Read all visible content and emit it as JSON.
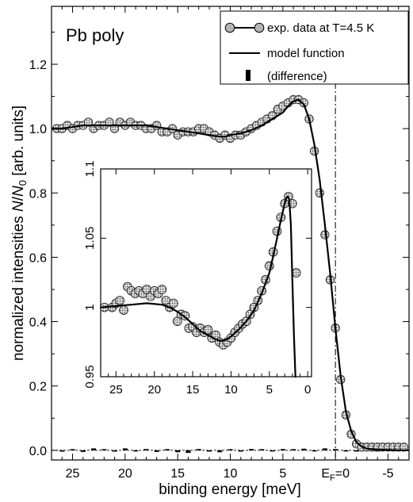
{
  "chart_data": [
    {
      "type": "scatter",
      "title": "Pb poly",
      "xlabel": "binding energy [meV]",
      "ylabel": "normalized intensities N/N0 [arb. units]",
      "ylabel_parts": {
        "main": "normalized intensities ",
        "var_a": "N",
        "slash": "/",
        "var_b": "N",
        "sub": "0",
        "unit": " [arb. units]"
      },
      "xlim": [
        27,
        -7
      ],
      "ylim": [
        -0.03,
        1.38
      ],
      "x_reversed": true,
      "grid": false,
      "legend_position": "top-right",
      "x_ticks": [
        {
          "value": 25,
          "label": "25"
        },
        {
          "value": 20,
          "label": "20"
        },
        {
          "value": 15,
          "label": "15"
        },
        {
          "value": 10,
          "label": "10"
        },
        {
          "value": 5,
          "label": "5"
        },
        {
          "value": 0,
          "label": "E_F=0",
          "main": "E",
          "sub": "F",
          "tail": "=0"
        },
        {
          "value": -5,
          "label": "-5"
        }
      ],
      "y_ticks": [
        {
          "value": 0.0,
          "label": "0.0"
        },
        {
          "value": 0.2,
          "label": "0.2"
        },
        {
          "value": 0.4,
          "label": "0.4"
        },
        {
          "value": 0.6,
          "label": "0.6"
        },
        {
          "value": 0.8,
          "label": "0.8"
        },
        {
          "value": 1.0,
          "label": "1.0"
        },
        {
          "value": 1.2,
          "label": "1.2"
        }
      ],
      "fermi_line_x": 0,
      "series": [
        {
          "name": "exp. data at T=4.5 K",
          "style": "markers",
          "x": [
            26.5,
            26,
            25.5,
            25,
            24.5,
            24,
            23.5,
            23,
            22.5,
            22,
            21.5,
            21,
            20.5,
            20,
            19.5,
            19,
            18.5,
            18,
            17.5,
            17,
            16.5,
            16,
            15.5,
            15,
            14.5,
            14,
            13.5,
            13,
            12.5,
            12,
            11.5,
            11,
            10.5,
            10,
            9.5,
            9,
            8.5,
            8,
            7.5,
            7,
            6.5,
            6,
            5.5,
            5,
            4.5,
            4,
            3.5,
            3,
            2.5,
            2,
            1.5,
            1,
            0.5,
            0,
            -0.5,
            -1,
            -1.5,
            -2,
            -2.5,
            -3,
            -3.5,
            -4,
            -4.5,
            -5,
            -5.5,
            -6,
            -6.5
          ],
          "y": [
            1.0,
            1.0,
            1.01,
            1.0,
            1.01,
            1.01,
            1.02,
            1.0,
            1.01,
            1.01,
            1.02,
            1.0,
            1.02,
            1.01,
            1.02,
            1.01,
            1.01,
            1.0,
            1.0,
            1.01,
            0.99,
            0.99,
            1.0,
            0.98,
            0.99,
            0.99,
            0.99,
            1.0,
            1.0,
            0.99,
            0.98,
            0.97,
            0.98,
            0.97,
            0.98,
            0.98,
            0.99,
            1.0,
            1.01,
            1.02,
            1.03,
            1.04,
            1.06,
            1.07,
            1.08,
            1.09,
            1.09,
            1.08,
            1.03,
            0.93,
            0.8,
            0.67,
            0.53,
            0.38,
            0.22,
            0.11,
            0.05,
            0.02,
            0.01,
            0.01,
            0.01,
            0.01,
            0.01,
            0.01,
            0.01,
            0.01,
            0.01
          ]
        },
        {
          "name": "model function",
          "style": "line",
          "x": [
            27,
            26,
            24,
            22,
            20,
            18,
            17,
            16,
            15,
            14,
            13,
            12,
            11,
            10.5,
            10,
            9,
            8,
            7,
            6,
            5,
            4.5,
            4,
            3.5,
            3,
            2.5,
            2,
            1.5,
            1,
            0.5,
            0,
            -0.5,
            -1,
            -1.5,
            -2,
            -2.5,
            -3,
            -4,
            -5,
            -6,
            -7
          ],
          "y": [
            1.0,
            1.0,
            1.01,
            1.01,
            1.01,
            1.01,
            1.005,
            1.0,
            0.995,
            0.99,
            0.985,
            0.98,
            0.975,
            0.975,
            0.98,
            0.985,
            0.995,
            1.01,
            1.03,
            1.05,
            1.07,
            1.085,
            1.09,
            1.075,
            1.03,
            0.95,
            0.84,
            0.7,
            0.55,
            0.38,
            0.23,
            0.12,
            0.06,
            0.025,
            0.012,
            0.005,
            0.002,
            0.001,
            0.0,
            0.0
          ]
        },
        {
          "name": "(difference)",
          "style": "bars",
          "x": [
            26,
            25,
            24,
            23,
            22,
            21,
            20,
            19,
            18,
            17,
            16,
            15,
            14,
            13,
            12,
            11,
            10,
            9,
            8,
            7,
            6,
            5,
            4,
            3,
            2,
            1,
            0,
            -1,
            -2,
            -3,
            -4,
            -5,
            -6
          ],
          "y": [
            -0.004,
            0.003,
            -0.005,
            0.006,
            0.003,
            -0.004,
            0.006,
            -0.003,
            0.004,
            -0.005,
            0.003,
            -0.006,
            -0.008,
            0.004,
            -0.004,
            -0.006,
            0.003,
            -0.004,
            0.004,
            0.002,
            -0.003,
            0.004,
            0.003,
            0.005,
            -0.003,
            0.006,
            0.004,
            -0.003,
            -0.004,
            0.002,
            -0.003,
            0.002,
            0.002
          ]
        }
      ]
    },
    {
      "type": "scatter",
      "title": "",
      "role": "inset",
      "xlim": [
        27,
        -0.5
      ],
      "ylim": [
        0.95,
        1.1
      ],
      "x_reversed": true,
      "x_ticks": [
        {
          "value": 25,
          "label": "25"
        },
        {
          "value": 20,
          "label": "20"
        },
        {
          "value": 15,
          "label": "15"
        },
        {
          "value": 10,
          "label": "10"
        },
        {
          "value": 5,
          "label": "5"
        },
        {
          "value": 0,
          "label": "0"
        }
      ],
      "y_ticks": [
        {
          "value": 0.95,
          "label": "0.95"
        },
        {
          "value": 1.0,
          "label": "1"
        },
        {
          "value": 1.05,
          "label": "1.05"
        },
        {
          "value": 1.1,
          "label": "1.1"
        }
      ],
      "series": [
        {
          "style": "markers",
          "x": [
            26.5,
            25.5,
            25,
            24.5,
            24,
            23.5,
            23,
            22.5,
            22,
            21.5,
            21,
            20.5,
            20,
            19.5,
            19,
            18.5,
            18,
            17.5,
            17,
            16.5,
            16,
            15.5,
            15,
            14.5,
            14,
            13.5,
            13,
            12.5,
            12,
            11.5,
            11,
            10.5,
            10,
            9.5,
            9,
            8.5,
            8,
            7.5,
            7,
            6.5,
            6,
            5.5,
            5,
            4.5,
            4,
            3.5,
            3,
            2.5,
            2,
            1.5
          ],
          "y": [
            1.0,
            1.0,
            1.003,
            1.005,
            0.998,
            1.015,
            1.012,
            1.01,
            1.012,
            1.01,
            1.013,
            1.008,
            1.012,
            1.01,
            1.013,
            1.005,
            1.0,
            1.003,
            0.99,
            0.995,
            0.994,
            0.985,
            0.986,
            0.982,
            0.985,
            0.982,
            0.984,
            0.978,
            0.98,
            0.975,
            0.973,
            0.975,
            0.978,
            0.982,
            0.985,
            0.988,
            0.99,
            0.995,
            1.0,
            1.005,
            1.012,
            1.02,
            1.03,
            1.04,
            1.055,
            1.065,
            1.075,
            1.08,
            1.075,
            1.025
          ]
        },
        {
          "style": "line",
          "x": [
            27,
            25,
            23,
            21,
            19,
            18,
            17,
            16,
            15,
            14,
            13,
            12,
            11.5,
            11,
            10.5,
            10,
            9,
            8,
            7,
            6,
            5,
            4.5,
            4,
            3.5,
            3,
            2.8,
            2.6,
            2.4,
            2.2,
            2,
            1.8,
            1.6
          ],
          "y": [
            1.0,
            1.001,
            1.002,
            1.003,
            1.002,
            1.0,
            0.997,
            0.993,
            0.988,
            0.983,
            0.98,
            0.977,
            0.976,
            0.976,
            0.977,
            0.979,
            0.984,
            0.99,
            0.998,
            1.01,
            1.025,
            1.037,
            1.05,
            1.063,
            1.075,
            1.079,
            1.08,
            1.078,
            1.06,
            1.02,
            0.98,
            0.94
          ]
        }
      ]
    }
  ]
}
